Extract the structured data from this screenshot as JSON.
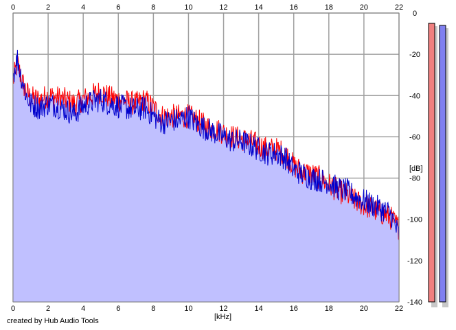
{
  "credit": "created by Hub Audio Tools",
  "chart_data": {
    "type": "area",
    "title": "",
    "xlabel": "[kHz]",
    "ylabel": "[dB]",
    "xlim": [
      0,
      22
    ],
    "ylim": [
      -140,
      0
    ],
    "x_ticks": [
      0,
      2,
      4,
      6,
      8,
      10,
      12,
      14,
      16,
      18,
      20,
      22
    ],
    "y_ticks": [
      0,
      -20,
      -40,
      -60,
      -80,
      -100,
      -120,
      -140
    ],
    "grid": true,
    "legend": "none",
    "colors": {
      "fill": "#c0c0ff",
      "left_channel": "#ff0000",
      "right_channel": "#0000cc",
      "grid": "#a0a0a0",
      "meter_left": "#f08080",
      "meter_right": "#8080f0"
    },
    "series": [
      {
        "color": "#ff0000",
        "x": [
          0,
          0.25,
          0.5,
          0.75,
          1,
          1.5,
          2,
          2.5,
          3,
          3.5,
          4,
          4.5,
          5,
          5.5,
          6,
          6.5,
          7,
          7.5,
          8,
          8.5,
          9,
          9.5,
          10,
          10.5,
          11,
          11.5,
          12,
          12.5,
          13,
          13.5,
          14,
          14.5,
          15,
          15.5,
          16,
          16.5,
          17,
          17.5,
          18,
          18.5,
          19,
          19.5,
          20,
          20.5,
          21,
          21.5,
          22
        ],
        "values": [
          -33,
          -24,
          -33,
          -38,
          -41,
          -42,
          -40,
          -41,
          -42,
          -44,
          -42,
          -40,
          -38,
          -41,
          -42,
          -43,
          -44,
          -42,
          -46,
          -50,
          -50,
          -50,
          -50,
          -52,
          -55,
          -56,
          -58,
          -60,
          -61,
          -62,
          -64,
          -66,
          -66,
          -68,
          -74,
          -77,
          -78,
          -80,
          -83,
          -86,
          -88,
          -91,
          -93,
          -95,
          -97,
          -99,
          -104
        ]
      },
      {
        "color": "#0000cc",
        "x": [
          0,
          0.25,
          0.5,
          0.75,
          1,
          1.5,
          2,
          2.5,
          3,
          3.5,
          4,
          4.5,
          5,
          5.5,
          6,
          6.5,
          7,
          7.5,
          8,
          8.5,
          9,
          9.5,
          10,
          10.5,
          11,
          11.5,
          12,
          12.5,
          13,
          13.5,
          14,
          14.5,
          15,
          15.5,
          16,
          16.5,
          17,
          17.5,
          18,
          18.5,
          19,
          19.5,
          20,
          20.5,
          21,
          21.5,
          22
        ],
        "values": [
          -30,
          -22,
          -32,
          -40,
          -44,
          -46,
          -44,
          -45,
          -47,
          -49,
          -45,
          -43,
          -42,
          -44,
          -45,
          -46,
          -47,
          -46,
          -50,
          -53,
          -52,
          -52,
          -50,
          -54,
          -56,
          -58,
          -60,
          -62,
          -62,
          -64,
          -66,
          -68,
          -68,
          -70,
          -76,
          -78,
          -80,
          -81,
          -82,
          -85,
          -86,
          -89,
          -91,
          -93,
          -95,
          -97,
          -108
        ]
      }
    ],
    "level_meters": {
      "left": -5,
      "right": -6
    }
  }
}
